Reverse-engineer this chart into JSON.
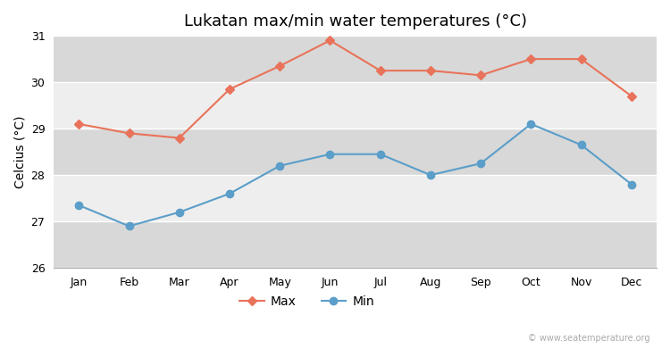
{
  "title": "Lukatan max/min water temperatures (°C)",
  "ylabel": "Celcius (°C)",
  "months": [
    "Jan",
    "Feb",
    "Mar",
    "Apr",
    "May",
    "Jun",
    "Jul",
    "Aug",
    "Sep",
    "Oct",
    "Nov",
    "Dec"
  ],
  "max_values": [
    29.1,
    28.9,
    28.8,
    29.85,
    30.35,
    30.9,
    30.25,
    30.25,
    30.15,
    30.5,
    30.5,
    29.7
  ],
  "min_values": [
    27.35,
    26.9,
    27.2,
    27.6,
    28.2,
    28.45,
    28.45,
    28.0,
    28.25,
    29.1,
    28.65,
    27.8
  ],
  "max_color": "#e8735a",
  "min_color": "#5b9ec9",
  "fig_bg_color": "#ffffff",
  "band_light": "#eeeeee",
  "band_dark": "#d8d8d8",
  "ylim": [
    26,
    31
  ],
  "yticks": [
    26,
    27,
    28,
    29,
    30,
    31
  ],
  "grid_color": "#ffffff",
  "watermark": "© www.seatemperature.org",
  "marker_max": "D",
  "marker_min": "o",
  "marker_size_max": 5,
  "marker_size_min": 6,
  "title_fontsize": 13,
  "label_fontsize": 10,
  "tick_fontsize": 9,
  "legend_fontsize": 10
}
